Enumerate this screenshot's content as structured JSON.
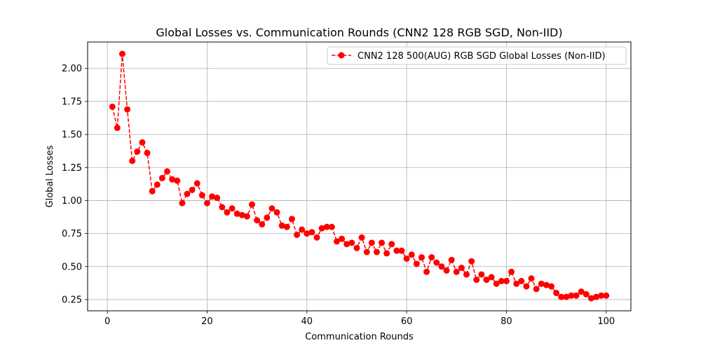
{
  "chart_data": {
    "type": "line",
    "title": "Global Losses vs. Communication Rounds (CNN2 128 RGB SGD, Non-IID)",
    "xlabel": "Communication Rounds",
    "ylabel": "Global Losses",
    "xlim": [
      -3.95,
      104.95
    ],
    "ylim": [
      0.165,
      2.2
    ],
    "xticks": [
      0,
      20,
      40,
      60,
      80,
      100
    ],
    "yticks": [
      0.25,
      0.5,
      0.75,
      1.0,
      1.25,
      1.5,
      1.75,
      2.0
    ],
    "grid": true,
    "legend_position": "top-right",
    "series": [
      {
        "name": "CNN2 128 500(AUG) RGB SGD Global Losses (Non-IID)",
        "color": "#ff0000",
        "line_style": "dashed",
        "marker": "circle",
        "x": [
          1,
          2,
          3,
          4,
          5,
          6,
          7,
          8,
          9,
          10,
          11,
          12,
          13,
          14,
          15,
          16,
          17,
          18,
          19,
          20,
          21,
          22,
          23,
          24,
          25,
          26,
          27,
          28,
          29,
          30,
          31,
          32,
          33,
          34,
          35,
          36,
          37,
          38,
          39,
          40,
          41,
          42,
          43,
          44,
          45,
          46,
          47,
          48,
          49,
          50,
          51,
          52,
          53,
          54,
          55,
          56,
          57,
          58,
          59,
          60,
          61,
          62,
          63,
          64,
          65,
          66,
          67,
          68,
          69,
          70,
          71,
          72,
          73,
          74,
          75,
          76,
          77,
          78,
          79,
          80,
          81,
          82,
          83,
          84,
          85,
          86,
          87,
          88,
          89,
          90,
          91,
          92,
          93,
          94,
          95,
          96,
          97,
          98,
          99,
          100
        ],
        "values": [
          1.71,
          1.55,
          2.11,
          1.69,
          1.3,
          1.37,
          1.44,
          1.36,
          1.07,
          1.12,
          1.17,
          1.22,
          1.16,
          1.15,
          0.98,
          1.05,
          1.08,
          1.13,
          1.04,
          0.98,
          1.03,
          1.02,
          0.95,
          0.91,
          0.94,
          0.9,
          0.89,
          0.88,
          0.97,
          0.85,
          0.82,
          0.87,
          0.94,
          0.91,
          0.81,
          0.8,
          0.86,
          0.74,
          0.78,
          0.75,
          0.76,
          0.72,
          0.79,
          0.8,
          0.8,
          0.69,
          0.71,
          0.67,
          0.68,
          0.64,
          0.72,
          0.61,
          0.68,
          0.61,
          0.68,
          0.6,
          0.67,
          0.62,
          0.62,
          0.56,
          0.59,
          0.52,
          0.57,
          0.46,
          0.57,
          0.53,
          0.5,
          0.47,
          0.55,
          0.46,
          0.49,
          0.44,
          0.54,
          0.4,
          0.44,
          0.4,
          0.42,
          0.37,
          0.39,
          0.39,
          0.46,
          0.37,
          0.39,
          0.35,
          0.41,
          0.33,
          0.37,
          0.36,
          0.35,
          0.3,
          0.27,
          0.27,
          0.28,
          0.28,
          0.31,
          0.29,
          0.26,
          0.27,
          0.28,
          0.28
        ]
      }
    ]
  }
}
